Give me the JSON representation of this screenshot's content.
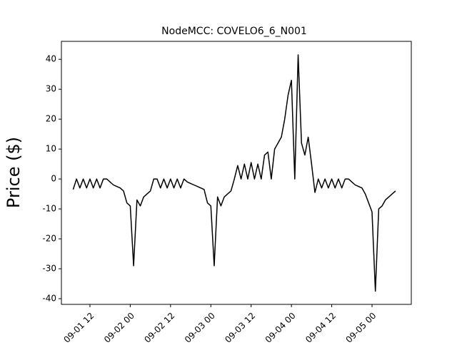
{
  "chart_data": {
    "type": "line",
    "title": "NodeMCC: COVELO6_6_N001",
    "y_label": "Price ($)",
    "x": [
      "09-01 07",
      "09-01 08",
      "09-01 09",
      "09-01 10",
      "09-01 11",
      "09-01 12",
      "09-01 13",
      "09-01 14",
      "09-01 15",
      "09-01 16",
      "09-01 17",
      "09-01 18",
      "09-01 19",
      "09-01 20",
      "09-01 21",
      "09-01 22",
      "09-01 23",
      "09-02 00",
      "09-02 01",
      "09-02 02",
      "09-02 03",
      "09-02 04",
      "09-02 05",
      "09-02 06",
      "09-02 07",
      "09-02 08",
      "09-02 09",
      "09-02 10",
      "09-02 11",
      "09-02 12",
      "09-02 13",
      "09-02 14",
      "09-02 15",
      "09-02 16",
      "09-02 17",
      "09-02 18",
      "09-02 19",
      "09-02 20",
      "09-02 21",
      "09-02 22",
      "09-02 23",
      "09-03 00",
      "09-03 01",
      "09-03 02",
      "09-03 03",
      "09-03 04",
      "09-03 05",
      "09-03 06",
      "09-03 07",
      "09-03 08",
      "09-03 09",
      "09-03 10",
      "09-03 11",
      "09-03 12",
      "09-03 13",
      "09-03 14",
      "09-03 15",
      "09-03 16",
      "09-03 17",
      "09-03 18",
      "09-03 19",
      "09-03 20",
      "09-03 21",
      "09-03 22",
      "09-03 23",
      "09-04 00",
      "09-04 01",
      "09-04 02",
      "09-04 03",
      "09-04 04",
      "09-04 05",
      "09-04 06",
      "09-04 07",
      "09-04 08",
      "09-04 09",
      "09-04 10",
      "09-04 11",
      "09-04 12",
      "09-04 13",
      "09-04 14",
      "09-04 15",
      "09-04 16",
      "09-04 17",
      "09-04 18",
      "09-04 19",
      "09-04 20",
      "09-04 21",
      "09-04 22",
      "09-04 23",
      "09-05 00",
      "09-05 01",
      "09-05 02",
      "09-05 03",
      "09-05 04",
      "09-05 05",
      "09-05 06",
      "09-05 07"
    ],
    "series": [
      {
        "color": "#000000",
        "values": [
          -3.5,
          0,
          -3,
          0,
          -3,
          0,
          -3,
          0,
          -3,
          0,
          0,
          -1,
          -2,
          -2.5,
          -3,
          -4,
          -8,
          -9,
          -29,
          -7,
          -9,
          -6,
          -5,
          -4,
          0,
          0,
          -3,
          0,
          -3,
          0,
          -3,
          0,
          -3,
          0,
          -1,
          -1.5,
          -2,
          -2.5,
          -3,
          -3.5,
          -8,
          -9,
          -29,
          -6,
          -9,
          -6,
          -5,
          -4,
          0,
          4.5,
          0,
          5,
          0,
          5.5,
          0,
          5,
          0,
          8,
          9,
          0,
          10,
          12,
          14,
          20,
          28,
          33,
          0,
          41.5,
          12,
          8,
          14,
          5,
          -4.5,
          0,
          -3,
          0,
          -3,
          0,
          -3,
          0,
          -3,
          0,
          0,
          -1,
          -2,
          -2.5,
          -3,
          -5,
          -8,
          -11,
          -37.5,
          -10,
          -9,
          -7,
          -6,
          -5,
          -4
        ]
      }
    ],
    "xlim": [
      "09-01 03:30",
      "09-05 11:42"
    ],
    "xticks": [
      "09-01 12",
      "09-02 00",
      "09-02 12",
      "09-03 00",
      "09-03 12",
      "09-04 00",
      "09-04 12",
      "09-05 00"
    ],
    "ylim": [
      -41.9,
      46
    ],
    "yticks": [
      -40,
      -30,
      -20,
      -10,
      0,
      10,
      20,
      30,
      40
    ]
  }
}
